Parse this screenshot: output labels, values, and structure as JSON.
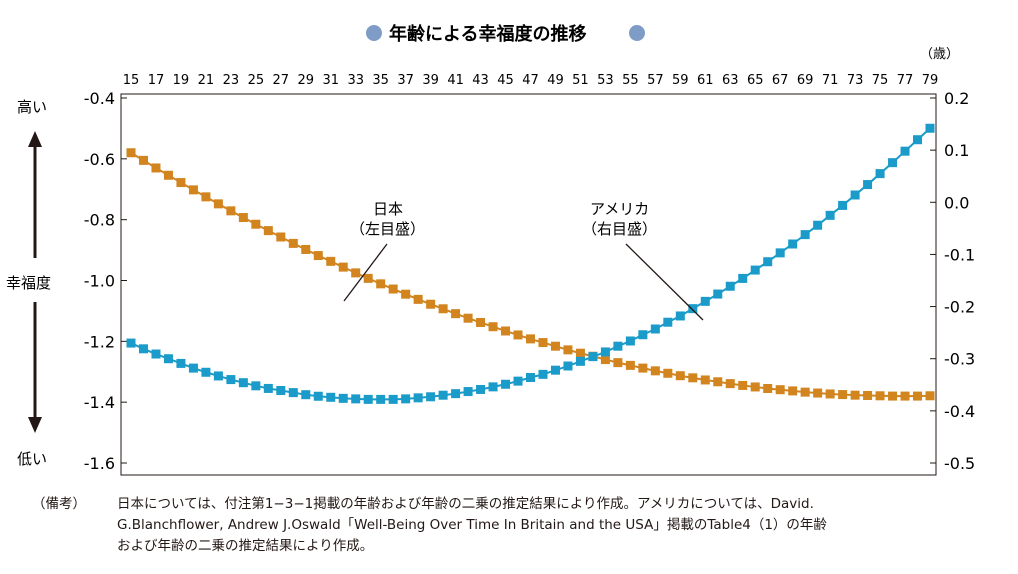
{
  "title": "年齢による幸福度の推移",
  "colors": {
    "japan": "#D2841E",
    "usa": "#1A9BC9",
    "title_dot": "#7F9CC7",
    "axis": "#231815"
  },
  "side_labels": {
    "high": "高い",
    "mid": "幸福度",
    "low": "低い"
  },
  "annotations": {
    "japan": [
      "日本",
      "（左目盛）"
    ],
    "usa": [
      "アメリカ",
      "（右目盛）"
    ]
  },
  "note": {
    "label": "（備考）",
    "lines": [
      "日本については、付注第1−3−1掲載の年齢および年齢の二乗の推定結果により作成。アメリカについては、David.",
      "G.Blanchflower, Andrew J.Oswald「Well-Being Over Time In Britain and the USA」掲載のTable4（1）の年齢",
      "および年齢の二乗の推定結果により作成。"
    ]
  },
  "chart_data": {
    "type": "line",
    "x_unit": "（歳）",
    "x_tick_labels": [
      "15",
      "17",
      "19",
      "21",
      "23",
      "25",
      "27",
      "29",
      "31",
      "33",
      "35",
      "37",
      "39",
      "41",
      "43",
      "45",
      "47",
      "49",
      "51",
      "53",
      "55",
      "57",
      "59",
      "61",
      "63",
      "65",
      "67",
      "69",
      "71",
      "73",
      "75",
      "77",
      "79"
    ],
    "x": [
      15,
      16,
      17,
      18,
      19,
      20,
      21,
      22,
      23,
      24,
      25,
      26,
      27,
      28,
      29,
      30,
      31,
      32,
      33,
      34,
      35,
      36,
      37,
      38,
      39,
      40,
      41,
      42,
      43,
      44,
      45,
      46,
      47,
      48,
      49,
      50,
      51,
      52,
      53,
      54,
      55,
      56,
      57,
      58,
      59,
      60,
      61,
      62,
      63,
      64,
      65,
      66,
      67,
      68,
      69,
      70,
      71,
      72,
      73,
      74,
      75,
      76,
      77,
      78,
      79
    ],
    "xlim": [
      15,
      79
    ],
    "left_axis": {
      "ylim": [
        -1.6,
        -0.4
      ],
      "ticks": [
        -0.4,
        -0.6,
        -0.8,
        -1.0,
        -1.2,
        -1.4,
        -1.6
      ],
      "tick_labels": [
        "-0.4",
        "-0.6",
        "-0.8",
        "-1.0",
        "-1.2",
        "-1.4",
        "-1.6"
      ]
    },
    "right_axis": {
      "ylim": [
        -0.5,
        0.2
      ],
      "ticks": [
        0.2,
        0.1,
        0.0,
        -0.1,
        -0.2,
        -0.3,
        -0.4,
        -0.5
      ],
      "tick_labels": [
        "0.2",
        "0.1",
        "0.0",
        "-0.1",
        "-0.2",
        "-0.3",
        "-0.4",
        "-0.5"
      ]
    },
    "series": [
      {
        "name": "日本",
        "axis": "left",
        "values": [
          -0.58,
          -0.605,
          -0.63,
          -0.654,
          -0.678,
          -0.702,
          -0.725,
          -0.748,
          -0.771,
          -0.793,
          -0.815,
          -0.836,
          -0.857,
          -0.878,
          -0.898,
          -0.918,
          -0.937,
          -0.956,
          -0.975,
          -0.993,
          -1.011,
          -1.028,
          -1.045,
          -1.062,
          -1.078,
          -1.093,
          -1.109,
          -1.124,
          -1.138,
          -1.152,
          -1.166,
          -1.179,
          -1.192,
          -1.204,
          -1.216,
          -1.228,
          -1.239,
          -1.249,
          -1.26,
          -1.27,
          -1.279,
          -1.288,
          -1.297,
          -1.305,
          -1.313,
          -1.32,
          -1.327,
          -1.333,
          -1.339,
          -1.345,
          -1.35,
          -1.355,
          -1.359,
          -1.363,
          -1.367,
          -1.37,
          -1.373,
          -1.375,
          -1.377,
          -1.378,
          -1.379,
          -1.38,
          -1.38,
          -1.38,
          -1.379
        ]
      },
      {
        "name": "アメリカ",
        "axis": "right",
        "values": [
          -0.27,
          -0.281,
          -0.291,
          -0.3,
          -0.309,
          -0.318,
          -0.326,
          -0.333,
          -0.34,
          -0.346,
          -0.352,
          -0.357,
          -0.361,
          -0.365,
          -0.369,
          -0.372,
          -0.374,
          -0.376,
          -0.377,
          -0.378,
          -0.378,
          -0.378,
          -0.377,
          -0.375,
          -0.373,
          -0.37,
          -0.367,
          -0.363,
          -0.359,
          -0.354,
          -0.349,
          -0.343,
          -0.336,
          -0.33,
          -0.322,
          -0.314,
          -0.305,
          -0.296,
          -0.287,
          -0.276,
          -0.266,
          -0.254,
          -0.243,
          -0.23,
          -0.218,
          -0.204,
          -0.19,
          -0.176,
          -0.161,
          -0.146,
          -0.13,
          -0.114,
          -0.097,
          -0.08,
          -0.062,
          -0.044,
          -0.025,
          -0.006,
          0.014,
          0.034,
          0.055,
          0.076,
          0.098,
          0.12,
          0.142
        ]
      }
    ]
  }
}
